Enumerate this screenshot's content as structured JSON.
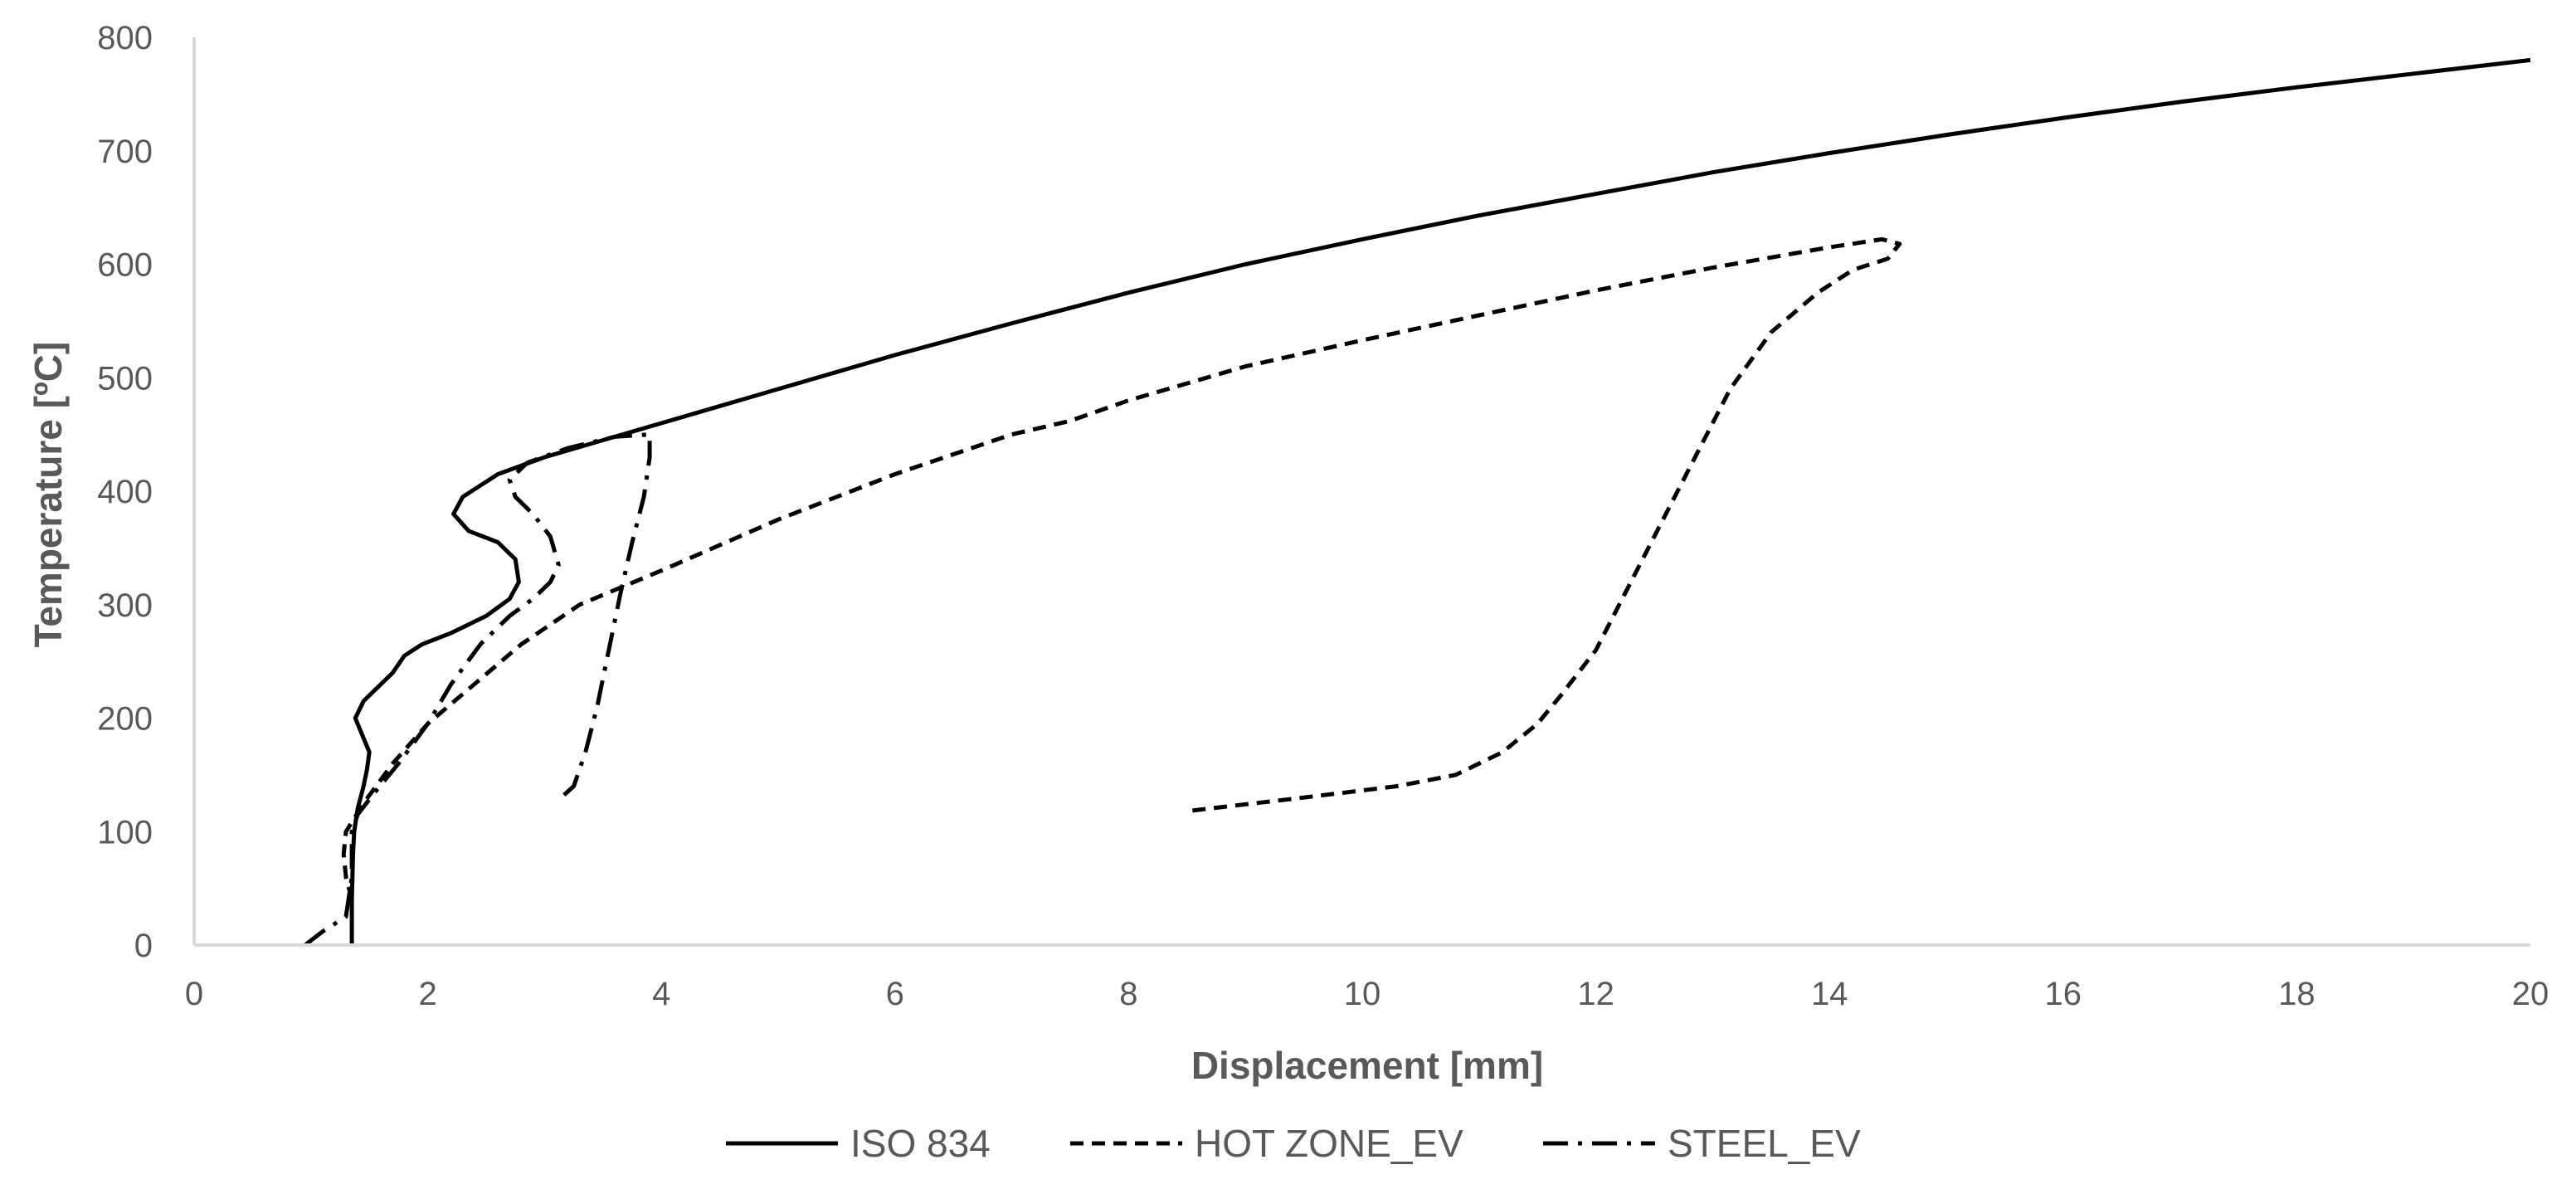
{
  "chart_data": {
    "type": "line",
    "title": "",
    "xlabel": "Displacement [mm]",
    "ylabel": "Temperature [ºC]",
    "xlim": [
      0,
      20
    ],
    "ylim": [
      0,
      800
    ],
    "xticks": [
      0,
      2,
      4,
      6,
      8,
      10,
      12,
      14,
      16,
      18,
      20
    ],
    "yticks": [
      0,
      100,
      200,
      300,
      400,
      500,
      600,
      700,
      800
    ],
    "xtick_labels": [
      "0",
      "2",
      "4",
      "6",
      "8",
      "10",
      "12",
      "14",
      "16",
      "18",
      "20"
    ],
    "ytick_labels": [
      "0",
      "100",
      "200",
      "300",
      "400",
      "500",
      "600",
      "700",
      "800"
    ],
    "grid": false,
    "legend_position": "bottom",
    "series": [
      {
        "name": "ISO 834",
        "style": "solid",
        "x": [
          1.35,
          1.35,
          1.36,
          1.37,
          1.4,
          1.45,
          1.48,
          1.5,
          1.42,
          1.38,
          1.45,
          1.55,
          1.7,
          1.8,
          1.95,
          2.2,
          2.5,
          2.7,
          2.78,
          2.75,
          2.6,
          2.35,
          2.22,
          2.3,
          2.6,
          3.0,
          3.5,
          4.0,
          5.0,
          6.0,
          7.0,
          8.0,
          9.0,
          10.0,
          11.0,
          12.0,
          13.0,
          14.0,
          15.0,
          16.0,
          17.0,
          18.0,
          19.0,
          20.0
        ],
        "y": [
          0,
          40,
          80,
          100,
          120,
          140,
          155,
          170,
          190,
          200,
          215,
          225,
          240,
          255,
          265,
          275,
          290,
          305,
          320,
          340,
          355,
          365,
          380,
          395,
          415,
          430,
          445,
          460,
          490,
          520,
          548,
          575,
          600,
          622,
          643,
          662,
          681,
          698,
          714,
          729,
          743,
          756,
          768,
          780
        ]
      },
      {
        "name": "HOT ZONE_EV",
        "style": "dashed",
        "x": [
          1.35,
          1.3,
          1.28,
          1.3,
          1.45,
          1.7,
          2.0,
          2.4,
          2.8,
          3.3,
          4.0,
          5.0,
          6.0,
          7.0,
          7.5,
          8.0,
          9.0,
          10.0,
          11.0,
          12.0,
          13.0,
          14.0,
          14.45,
          14.6,
          14.5,
          14.2,
          13.9,
          13.5,
          13.15,
          12.8,
          12.4,
          12.0,
          11.7,
          11.5,
          11.2,
          10.8,
          10.3,
          9.5,
          8.5
        ],
        "y": [
          40,
          60,
          80,
          100,
          125,
          160,
          195,
          230,
          265,
          300,
          330,
          375,
          415,
          450,
          462,
          480,
          510,
          533,
          555,
          577,
          597,
          615,
          622,
          618,
          605,
          595,
          575,
          540,
          490,
          420,
          340,
          260,
          220,
          195,
          170,
          150,
          140,
          130,
          118
        ]
      },
      {
        "name": "STEEL_EV",
        "style": "dashdot",
        "x": [
          0.95,
          1.1,
          1.3,
          1.35,
          1.35,
          1.4,
          1.55,
          1.75,
          2.0,
          2.2,
          2.45,
          2.7,
          2.9,
          3.05,
          3.12,
          3.05,
          2.9,
          2.75,
          2.7,
          2.85,
          3.2,
          3.6,
          3.9,
          3.9,
          3.85,
          3.75,
          3.65,
          3.55,
          3.45,
          3.35,
          3.25,
          3.12
        ],
        "y": [
          0,
          12,
          25,
          60,
          100,
          115,
          135,
          160,
          195,
          230,
          265,
          290,
          305,
          320,
          335,
          360,
          380,
          395,
          410,
          425,
          438,
          448,
          450,
          430,
          395,
          355,
          310,
          260,
          210,
          170,
          140,
          128
        ]
      }
    ]
  }
}
